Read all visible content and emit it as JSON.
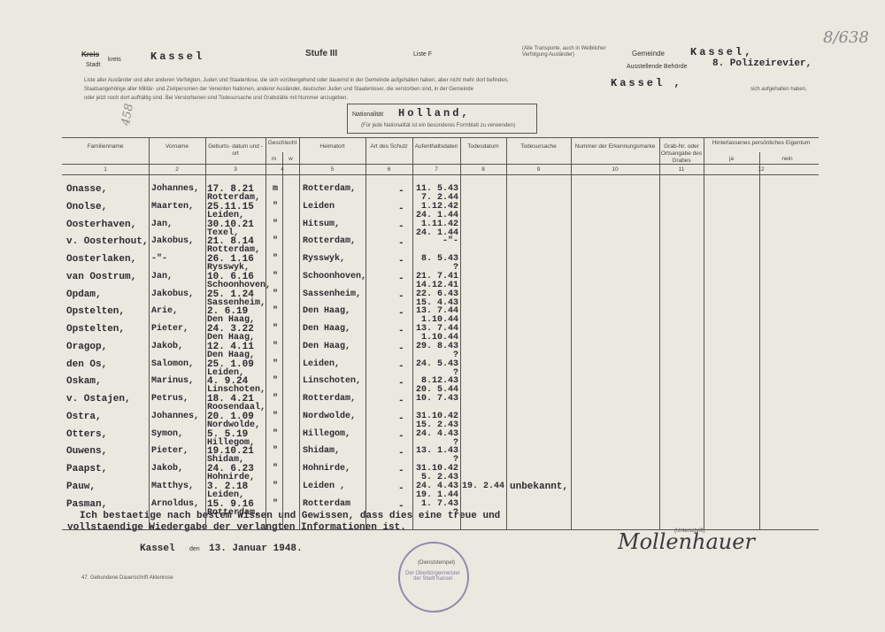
{
  "header": {
    "corner_note": "8/638",
    "district_label": "Kreis",
    "city_label": "Stadt",
    "kreis_suffix": "kreis",
    "city": "Kassel",
    "level": "Stufe III",
    "list": "Liste F",
    "transport_note": [
      "(Alle Transporte, auch in Weiblicher",
      "Verfolgung Ausländer)"
    ],
    "municipality_label": "Gemeinde",
    "municipality": "Kassel,",
    "authority_label": "Ausstellende Behörde",
    "authority": "8. Polizeirevier,",
    "intro": [
      "Liste aller Ausländer und aller anderen Verfolgten, Juden und Staatenlose, die sich vorübergehend oder dauernd in der Gemeinde aufgehalten haben, aber nicht mehr dort befinden,",
      "Staatsangehörige aller Militär- und Zivilpersonen der Vereinten Nationen, anderer Ausländer, deutscher Juden und Staatenloser, die verstorben sind, in der Gemeinde",
      "oder jetzt noch dort aufhältig sind. Bei Verstorbenen sind Todesursache und Grabstätte mit Nummer anzugeben."
    ],
    "intro_city": "Kassel ,",
    "intro_end": "sich aufgehalten haben,",
    "margin_number": "458",
    "nationality_label": "Nationalität",
    "nationality": "Holland,",
    "nationality_note": "(Für jede Nationalität ist ein besonderes Formblatt zu verwenden)"
  },
  "table": {
    "headers": [
      "Familienname",
      "Vorname",
      "Geburts- datum und -ort",
      "Geschlecht",
      "Heimatort",
      "Art des Schutz",
      "Aufenthaltsdaten",
      "Todesdatum",
      "Todesursache",
      "Nummer der Erkennungsmarke",
      "Grab-Nr. oder Ortsangabe des Grabes",
      "Hinterlassenes persönliches Eigentum"
    ],
    "sex_sub": [
      "m",
      "w"
    ],
    "property_sub": [
      "ja",
      "nein"
    ],
    "column_numbers": [
      "1",
      "2",
      "3",
      "4",
      "5",
      "6",
      "7",
      "8",
      "9",
      "10",
      "11",
      "12"
    ],
    "rows": [
      {
        "surname": "Onasse,",
        "first_name": "Johannes,",
        "birth_date": "17. 8.21",
        "birth_place": "Rotterdam,",
        "sex": "m",
        "hometown": "Rotterdam,",
        "protection": "-",
        "stay": [
          "11. 5.43",
          "7. 2.44"
        ]
      },
      {
        "surname": "Onolse,",
        "first_name": "Maarten,",
        "birth_date": "25.11.15",
        "birth_place": "Leiden,",
        "sex": "\"",
        "hometown": "Leiden",
        "protection": "-",
        "stay": [
          "1.12.42",
          "24. 1.44"
        ]
      },
      {
        "surname": "Oosterhaven,",
        "first_name": "Jan,",
        "birth_date": "30.10.21",
        "birth_place": "Texel,",
        "sex": "\"",
        "hometown": "Hitsum,",
        "protection": "-",
        "stay": [
          "1.11.42",
          "24. 1.44"
        ]
      },
      {
        "surname": "v. Oosterhout,",
        "first_name": "Jakobus,",
        "birth_date": "21. 8.14",
        "birth_place": "Rotterdam,",
        "sex": "\"",
        "hometown": "Rotterdam,",
        "protection": "-",
        "stay": [
          "-\"-"
        ]
      },
      {
        "surname": "Oosterlaken,",
        "first_name": "-\"-",
        "birth_date": "26. 1.16",
        "birth_place": "Rysswyk,",
        "sex": "\"",
        "hometown": "Rysswyk,",
        "protection": "-",
        "stay": [
          "8. 5.43",
          "?"
        ]
      },
      {
        "surname": "van Oostrum,",
        "first_name": "Jan,",
        "birth_date": "10. 6.16",
        "birth_place": "Schoonhoven,",
        "sex": "\"",
        "hometown": "Schoonhoven,",
        "protection": "-",
        "stay": [
          "21. 7.41",
          "14.12.41"
        ]
      },
      {
        "surname": "Opdam,",
        "first_name": "Jakobus,",
        "birth_date": "25. 1.24",
        "birth_place": "Sassenheim,",
        "sex": "\"",
        "hometown": "Sassenheim,",
        "protection": "-",
        "stay": [
          "22. 6.43",
          "15. 4.43"
        ]
      },
      {
        "surname": "Opstelten,",
        "first_name": "Arie,",
        "birth_date": "2. 6.19",
        "birth_place": "Den Haag,",
        "sex": "\"",
        "hometown": "Den Haag,",
        "protection": "-",
        "stay": [
          "13. 7.44",
          "1.10.44"
        ]
      },
      {
        "surname": "Opstelten,",
        "first_name": "Pieter,",
        "birth_date": "24. 3.22",
        "birth_place": "Den Haag,",
        "sex": "\"",
        "hometown": "Den Haag,",
        "protection": "-",
        "stay": [
          "13. 7.44",
          "1.10.44"
        ]
      },
      {
        "surname": "Oragop,",
        "first_name": "Jakob,",
        "birth_date": "12. 4.11",
        "birth_place": "Den Haag,",
        "sex": "\"",
        "hometown": "Den Haag,",
        "protection": "-",
        "stay": [
          "29. 8.43",
          "?"
        ]
      },
      {
        "surname": "den Os,",
        "first_name": "Salomon,",
        "birth_date": "25. 1.09",
        "birth_place": "Leiden,",
        "sex": "\"",
        "hometown": "Leiden,",
        "protection": "-",
        "stay": [
          "24. 5.43",
          "?"
        ]
      },
      {
        "surname": "Oskam,",
        "first_name": "Marinus,",
        "birth_date": "4. 9.24",
        "birth_place": "Linschoten,",
        "sex": "\"",
        "hometown": "Linschoten,",
        "protection": "-",
        "stay": [
          "8.12.43",
          "20. 5.44"
        ]
      },
      {
        "surname": "v. Ostajen,",
        "first_name": "Petrus,",
        "birth_date": "18. 4.21",
        "birth_place": "Roosendaal,",
        "sex": "\"",
        "hometown": "Rotterdam,",
        "protection": "-",
        "stay": [
          "10. 7.43"
        ]
      },
      {
        "surname": "Ostra,",
        "first_name": "Johannes,",
        "birth_date": "20. 1.09",
        "birth_place": "Nordwolde,",
        "sex": "\"",
        "hometown": "Nordwolde,",
        "protection": "-",
        "stay": [
          "31.10.42",
          "15. 2.43"
        ]
      },
      {
        "surname": "Otters,",
        "first_name": "Symon,",
        "birth_date": "5. 5.19",
        "birth_place": "Hillegom,",
        "sex": "\"",
        "hometown": "Hillegom,",
        "protection": "-",
        "stay": [
          "24. 4.43",
          "?"
        ]
      },
      {
        "surname": "Ouwens,",
        "first_name": "Pieter,",
        "birth_date": "19.10.21",
        "birth_place": "Shidam,",
        "sex": "\"",
        "hometown": "Shidam,",
        "protection": "-",
        "stay": [
          "13. 1.43",
          "?"
        ]
      },
      {
        "surname": "Paapst,",
        "first_name": "Jakob,",
        "birth_date": "24. 6.23",
        "birth_place": "Hohnirde,",
        "sex": "\"",
        "hometown": "Hohnirde,",
        "protection": "-",
        "stay": [
          "31.10.42",
          "5. 2.43"
        ]
      },
      {
        "surname": "Pauw,",
        "first_name": "Matthys,",
        "birth_date": "3. 2.18",
        "birth_place": "Leiden,",
        "sex": "\"",
        "hometown": "Leiden ,",
        "protection": "-",
        "stay": [
          "24. 4.43",
          "19. 1.44"
        ],
        "death_date": "19. 2.44",
        "death_cause": "unbekannt,"
      },
      {
        "surname": "Pasman,",
        "first_name": "Arnoldus,",
        "birth_date": "15. 9.16",
        "birth_place": "Rotterdam,",
        "sex": "\"",
        "hometown": "Rotterdam",
        "protection": "-",
        "stay": [
          "1. 7.43",
          "?"
        ]
      }
    ]
  },
  "footer": {
    "declaration": [
      "Ich bestaetige nach bestem Wissen und Gewissen, dass dies eine treue und",
      "vollstaendige Wiedergabe der verlangten Informationen ist."
    ],
    "place": "Kassel",
    "date_label": "den",
    "date": "13. Januar 1948.",
    "signature_label": "(Unterschrift)",
    "signature": "Mollenhauer",
    "stamp": "Der Oberbürgermeister der Stadt Kassel",
    "stamp_label": "(Dienststempel)",
    "print_note": "47. Gebundene Dauerschrift Aktenrose"
  }
}
